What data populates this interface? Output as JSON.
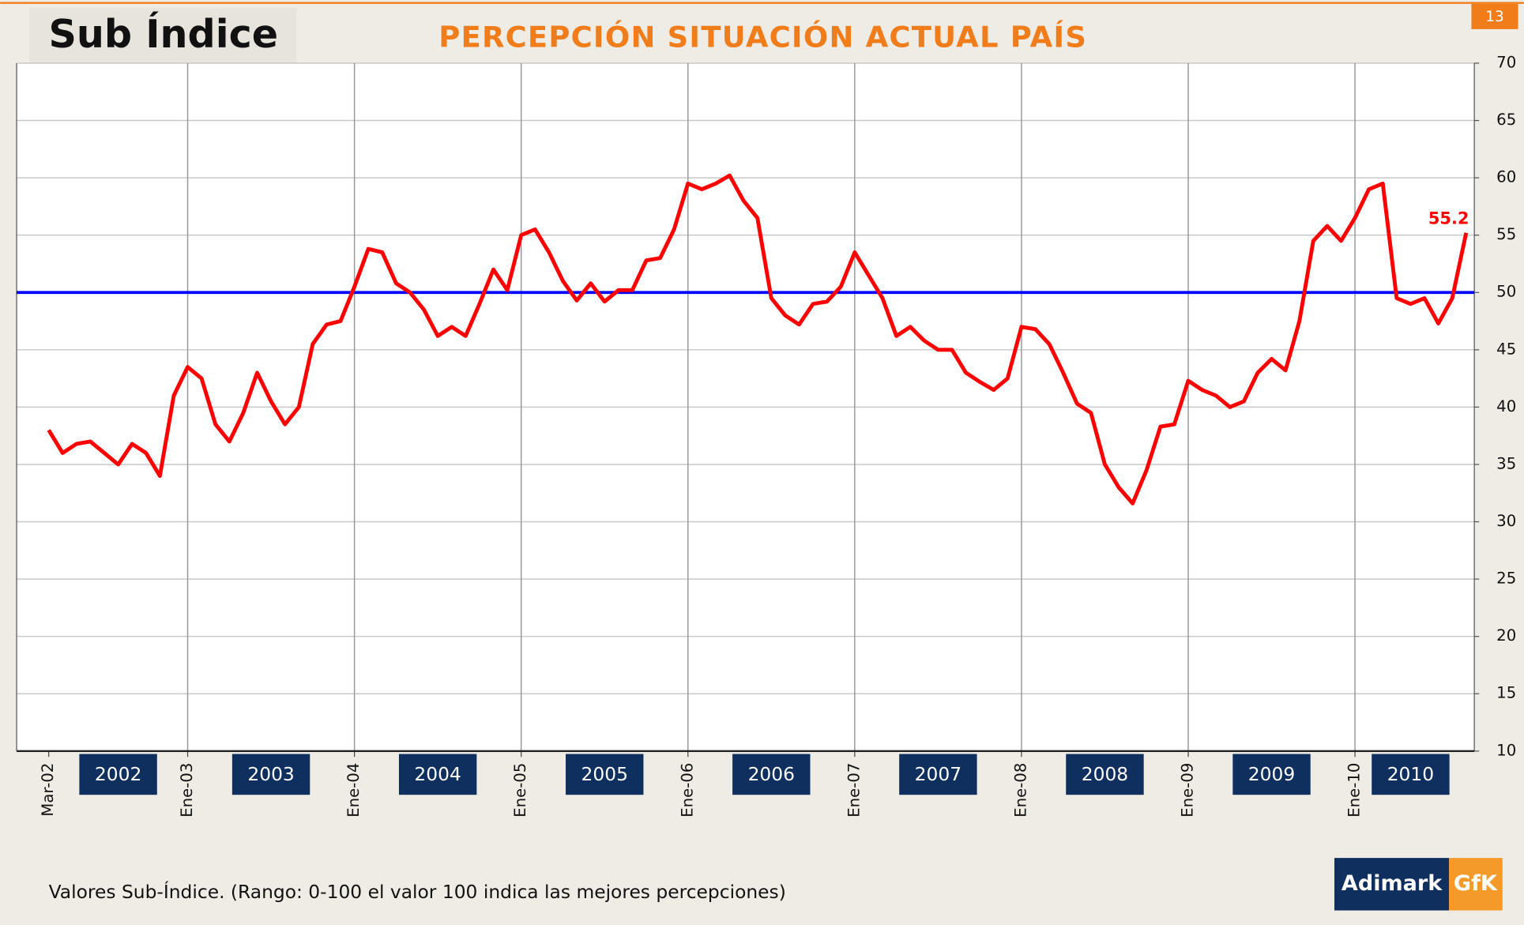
{
  "header": "Sub Índice",
  "page_number": "13",
  "chart_data": {
    "type": "line",
    "title": "PERCEPCIÓN SITUACIÓN ACTUAL PAÍS",
    "categories": [
      "Mar-02",
      null,
      null,
      null,
      null,
      null,
      null,
      null,
      null,
      null,
      "Ene-03",
      null,
      null,
      null,
      null,
      null,
      null,
      null,
      null,
      null,
      null,
      null,
      "Ene-04",
      null,
      null,
      null,
      null,
      null,
      null,
      null,
      null,
      null,
      null,
      null,
      "Ene-05",
      null,
      null,
      null,
      null,
      null,
      null,
      null,
      null,
      null,
      null,
      null,
      "Ene-06",
      null,
      null,
      null,
      null,
      null,
      null,
      null,
      null,
      null,
      null,
      null,
      "Ene-07",
      null,
      null,
      null,
      null,
      null,
      null,
      null,
      null,
      null,
      null,
      null,
      "Ene-08",
      null,
      null,
      null,
      null,
      null,
      null,
      null,
      null,
      null,
      null,
      null,
      "Ene-09",
      null,
      null,
      null,
      null,
      null,
      null,
      null,
      null,
      null,
      null,
      null,
      "Ene-10",
      null,
      null,
      null,
      null,
      null,
      null,
      null,
      null
    ],
    "series": [
      {
        "name": "Sub-Índice",
        "color": "#ff0000",
        "values": [
          38,
          36,
          36.8,
          37,
          36,
          35,
          36.8,
          36,
          34,
          41,
          43.5,
          42.5,
          38.5,
          37,
          39.5,
          43,
          40.5,
          38.5,
          40,
          45.5,
          47.2,
          47.5,
          50.5,
          53.8,
          53.5,
          50.8,
          50,
          48.5,
          46.2,
          47,
          46.2,
          49,
          52,
          50.2,
          55,
          55.5,
          53.5,
          51,
          49.3,
          50.8,
          49.2,
          50.2,
          50.2,
          52.8,
          53,
          55.5,
          59.5,
          59,
          59.5,
          60.2,
          58,
          56.5,
          49.5,
          48,
          47.2,
          49,
          49.2,
          50.5,
          53.5,
          51.5,
          49.5,
          46.2,
          47,
          45.8,
          45,
          45,
          43,
          42.2,
          41.5,
          42.5,
          47,
          46.8,
          45.5,
          43,
          40.3,
          39.5,
          35,
          33,
          31.6,
          34.5,
          38.3,
          38.5,
          42.3,
          41.5,
          41,
          40,
          40.5,
          43,
          44.2,
          43.2,
          47.5,
          54.5,
          55.8,
          54.5,
          56.5,
          59,
          59.5,
          49.5,
          49,
          49.5,
          47.3,
          49.5,
          55.2
        ]
      }
    ],
    "last_value_label": true,
    "reference_line": {
      "value": 50,
      "color": "#0000ff"
    },
    "year_labels": [
      "2002",
      "2003",
      "2004",
      "2005",
      "2006",
      "2007",
      "2008",
      "2009",
      "2010"
    ],
    "ylim": [
      10,
      70
    ],
    "yticks": [
      10,
      15,
      20,
      25,
      30,
      35,
      40,
      45,
      50,
      55,
      60,
      65,
      70
    ],
    "grid": true
  },
  "footnote": "Valores Sub-Índice. (Rango: 0-100 el valor 100 indica las mejores percepciones)",
  "logo": {
    "left": "Adimark",
    "right": "GfK"
  }
}
